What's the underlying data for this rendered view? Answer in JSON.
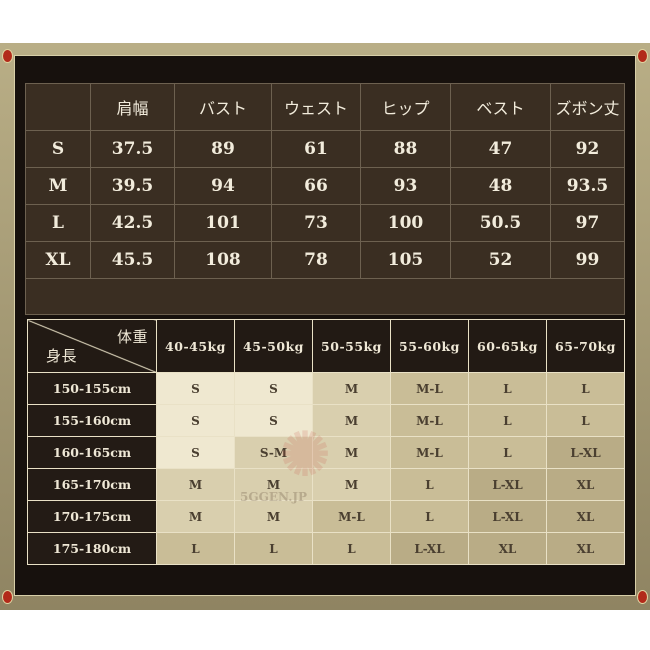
{
  "size_table": {
    "headers": [
      "",
      "肩幅",
      "バスト",
      "ウェスト",
      "ヒップ",
      "ベスト",
      "ズボン丈"
    ],
    "rows": [
      [
        "S",
        "37.5",
        "89",
        "61",
        "88",
        "47",
        "92"
      ],
      [
        "M",
        "39.5",
        "94",
        "66",
        "93",
        "48",
        "93.5"
      ],
      [
        "L",
        "42.5",
        "101",
        "73",
        "100",
        "50.5",
        "97"
      ],
      [
        "XL",
        "45.5",
        "108",
        "78",
        "105",
        "52",
        "99"
      ]
    ]
  },
  "fit_table": {
    "corner_top": "体重",
    "corner_bottom": "身長",
    "weights": [
      "40-45kg",
      "45-50kg",
      "50-55kg",
      "55-60kg",
      "60-65kg",
      "65-70kg"
    ],
    "rows": [
      {
        "height": "150-155cm",
        "sizes": [
          "S",
          "S",
          "M",
          "M-L",
          "L",
          "L"
        ]
      },
      {
        "height": "155-160cm",
        "sizes": [
          "S",
          "S",
          "M",
          "M-L",
          "L",
          "L"
        ]
      },
      {
        "height": "160-165cm",
        "sizes": [
          "S",
          "S-M",
          "M",
          "M-L",
          "L",
          "L-XL"
        ]
      },
      {
        "height": "165-170cm",
        "sizes": [
          "M",
          "M",
          "M",
          "L",
          "L-XL",
          "XL"
        ]
      },
      {
        "height": "170-175cm",
        "sizes": [
          "M",
          "M",
          "M-L",
          "L",
          "L-XL",
          "XL"
        ]
      },
      {
        "height": "175-180cm",
        "sizes": [
          "L",
          "L",
          "L",
          "L-XL",
          "XL",
          "XL"
        ]
      }
    ]
  },
  "watermark": {
    "logo": "五弦光",
    "text": "5GGEN.JP"
  },
  "colors": {
    "frame": "#b9ae86",
    "background": "#17110d",
    "table_dark": "#3a2e22",
    "cell_s": "#efe8d0",
    "cell_m": "#d9cfae",
    "cell_l": "#c9bd97",
    "cell_xl": "#b9ac86"
  }
}
